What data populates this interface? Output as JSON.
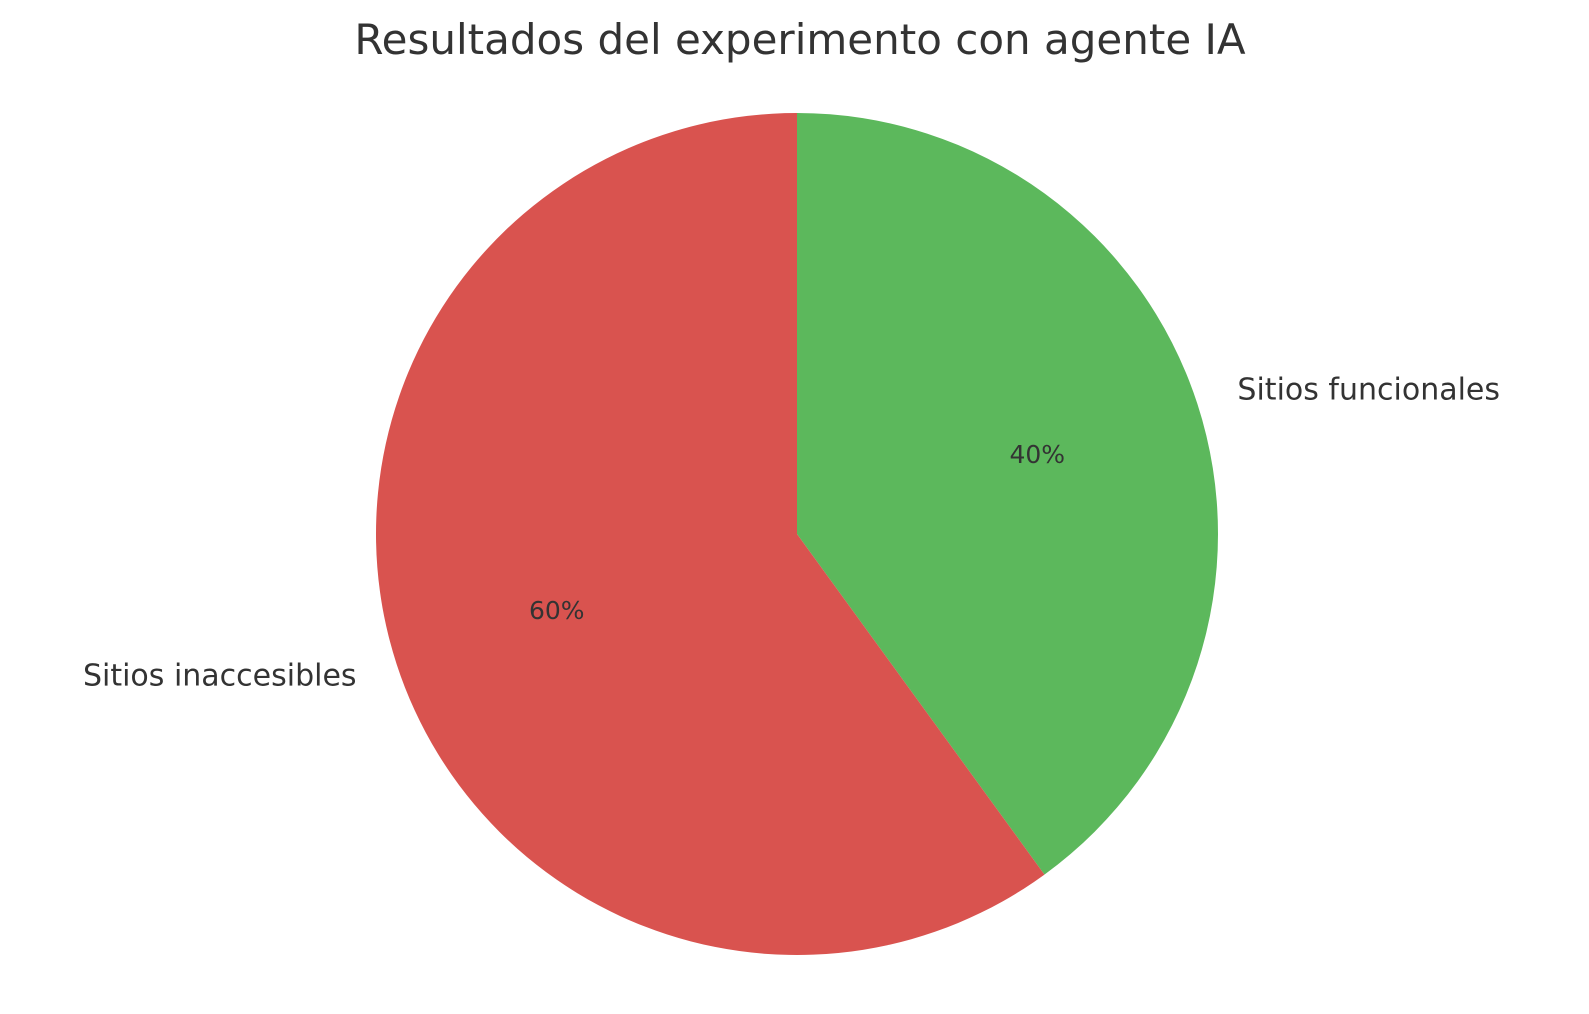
{
  "chart_data": {
    "type": "pie",
    "title": "Resultados del experimento con agente IA",
    "slices": [
      {
        "label": "Sitios funcionales",
        "value": 40,
        "pct_label": "40%",
        "color": "#5cb85c"
      },
      {
        "label": "Sitios inaccesibles",
        "value": 60,
        "pct_label": "60%",
        "color": "#d9534f"
      }
    ],
    "start_angle": "top (12 o'clock)",
    "direction": "clockwise",
    "legend": "none"
  }
}
